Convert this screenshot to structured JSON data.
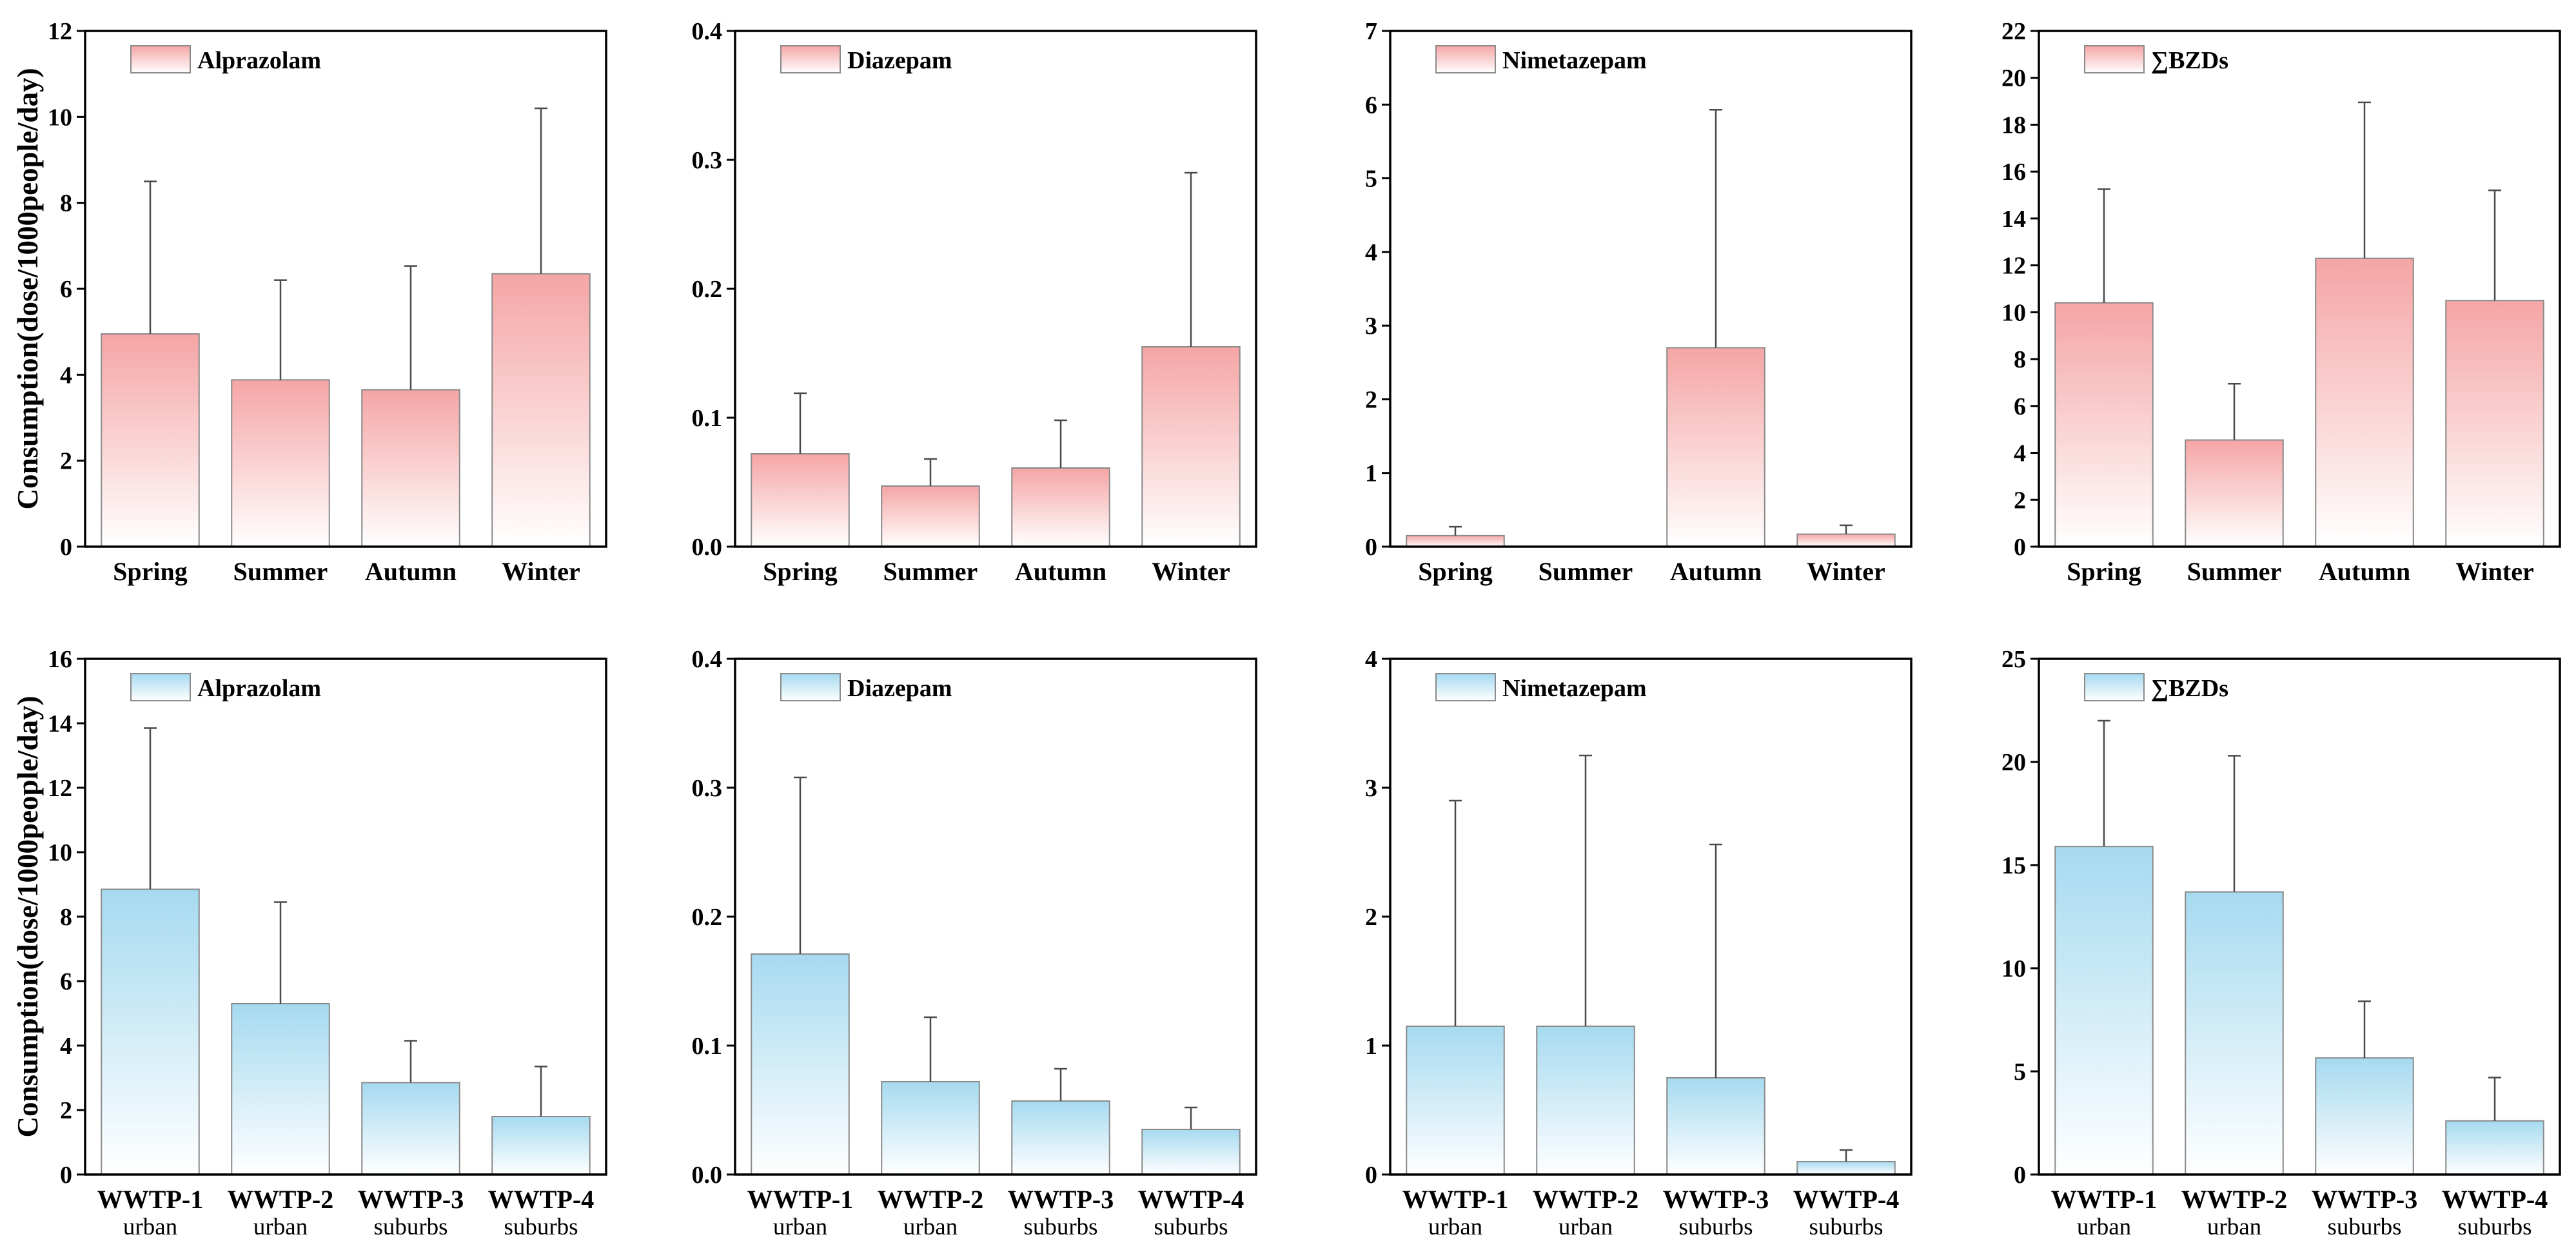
{
  "chart_data": [
    {
      "type": "bar",
      "categories": [
        "Spring",
        "Summer",
        "Autumn",
        "Winter"
      ],
      "series": [
        {
          "name": "Alprazolam",
          "values": [
            4.95,
            3.88,
            3.65,
            6.35
          ],
          "errors": [
            3.55,
            2.32,
            2.88,
            3.85
          ]
        }
      ],
      "ylabel": "Consumption(dose/1000people/day)",
      "ylim": [
        0,
        12
      ],
      "yticks": [
        "0",
        "2",
        "4",
        "6",
        "8",
        "10",
        "12"
      ],
      "color": "#F5A5A5",
      "legend_position": "top-left",
      "grid": false
    },
    {
      "type": "bar",
      "categories": [
        "Spring",
        "Summer",
        "Autumn",
        "Winter"
      ],
      "series": [
        {
          "name": "Diazepam",
          "values": [
            0.072,
            0.047,
            0.061,
            0.155
          ],
          "errors": [
            0.047,
            0.021,
            0.037,
            0.135
          ]
        }
      ],
      "ylim": [
        0,
        0.4
      ],
      "yticks": [
        "0.0",
        "0.1",
        "0.2",
        "0.3",
        "0.4"
      ],
      "color": "#F5A5A5",
      "legend_position": "top-left",
      "grid": false
    },
    {
      "type": "bar",
      "categories": [
        "Spring",
        "Summer",
        "Autumn",
        "Winter"
      ],
      "series": [
        {
          "name": "Nimetazepam",
          "values": [
            0.15,
            0,
            2.7,
            0.17
          ],
          "errors": [
            0.12,
            0,
            3.23,
            0.12
          ]
        }
      ],
      "ylim": [
        0,
        7
      ],
      "yticks": [
        "0",
        "1",
        "2",
        "3",
        "4",
        "5",
        "6",
        "7"
      ],
      "color": "#F5A5A5",
      "legend_position": "top-left",
      "grid": false
    },
    {
      "type": "bar",
      "categories": [
        "Spring",
        "Summer",
        "Autumn",
        "Winter"
      ],
      "series": [
        {
          "name": "∑BZDs",
          "values": [
            10.4,
            4.55,
            12.3,
            10.5
          ],
          "errors": [
            4.85,
            2.4,
            6.65,
            4.7
          ]
        }
      ],
      "ylim": [
        0,
        22
      ],
      "yticks": [
        "0",
        "2",
        "4",
        "6",
        "8",
        "10",
        "12",
        "14",
        "16",
        "18",
        "20",
        "22"
      ],
      "color": "#F5A5A5",
      "legend_position": "top-left",
      "grid": false
    },
    {
      "type": "bar",
      "categories": [
        "WWTP-1",
        "WWTP-2",
        "WWTP-3",
        "WWTP-4"
      ],
      "category_sublabels": [
        "urban",
        "urban",
        "suburbs",
        "suburbs"
      ],
      "series": [
        {
          "name": "Alprazolam",
          "values": [
            8.85,
            5.3,
            2.85,
            1.8
          ],
          "errors": [
            5.0,
            3.15,
            1.3,
            1.55
          ]
        }
      ],
      "ylabel": "Consumption(dose/1000people/day)",
      "ylim": [
        0,
        16
      ],
      "yticks": [
        "0",
        "2",
        "4",
        "6",
        "8",
        "10",
        "12",
        "14",
        "16"
      ],
      "color": "#A6DAF0",
      "legend_position": "top-left",
      "grid": false
    },
    {
      "type": "bar",
      "categories": [
        "WWTP-1",
        "WWTP-2",
        "WWTP-3",
        "WWTP-4"
      ],
      "category_sublabels": [
        "urban",
        "urban",
        "suburbs",
        "suburbs"
      ],
      "series": [
        {
          "name": "Diazepam",
          "values": [
            0.171,
            0.072,
            0.057,
            0.035
          ],
          "errors": [
            0.137,
            0.05,
            0.025,
            0.017
          ]
        }
      ],
      "ylim": [
        0,
        0.4
      ],
      "yticks": [
        "0.0",
        "0.1",
        "0.2",
        "0.3",
        "0.4"
      ],
      "color": "#A6DAF0",
      "legend_position": "top-left",
      "grid": false
    },
    {
      "type": "bar",
      "categories": [
        "WWTP-1",
        "WWTP-2",
        "WWTP-3",
        "WWTP-4"
      ],
      "category_sublabels": [
        "urban",
        "urban",
        "suburbs",
        "suburbs"
      ],
      "series": [
        {
          "name": "Nimetazepam",
          "values": [
            1.15,
            1.15,
            0.75,
            0.1
          ],
          "errors": [
            1.75,
            2.1,
            1.81,
            0.09
          ]
        }
      ],
      "ylim": [
        0,
        4
      ],
      "yticks": [
        "0",
        "1",
        "2",
        "3",
        "4"
      ],
      "color": "#A6DAF0",
      "legend_position": "top-left",
      "grid": false
    },
    {
      "type": "bar",
      "categories": [
        "WWTP-1",
        "WWTP-2",
        "WWTP-3",
        "WWTP-4"
      ],
      "category_sublabels": [
        "urban",
        "urban",
        "suburbs",
        "suburbs"
      ],
      "series": [
        {
          "name": "∑BZDs",
          "values": [
            15.9,
            13.7,
            5.65,
            2.6
          ],
          "errors": [
            6.1,
            6.6,
            2.75,
            2.1
          ]
        }
      ],
      "ylim": [
        0,
        25
      ],
      "yticks": [
        "0",
        "5",
        "10",
        "15",
        "20",
        "25"
      ],
      "color": "#A6DAF0",
      "legend_position": "top-left",
      "grid": false
    }
  ]
}
